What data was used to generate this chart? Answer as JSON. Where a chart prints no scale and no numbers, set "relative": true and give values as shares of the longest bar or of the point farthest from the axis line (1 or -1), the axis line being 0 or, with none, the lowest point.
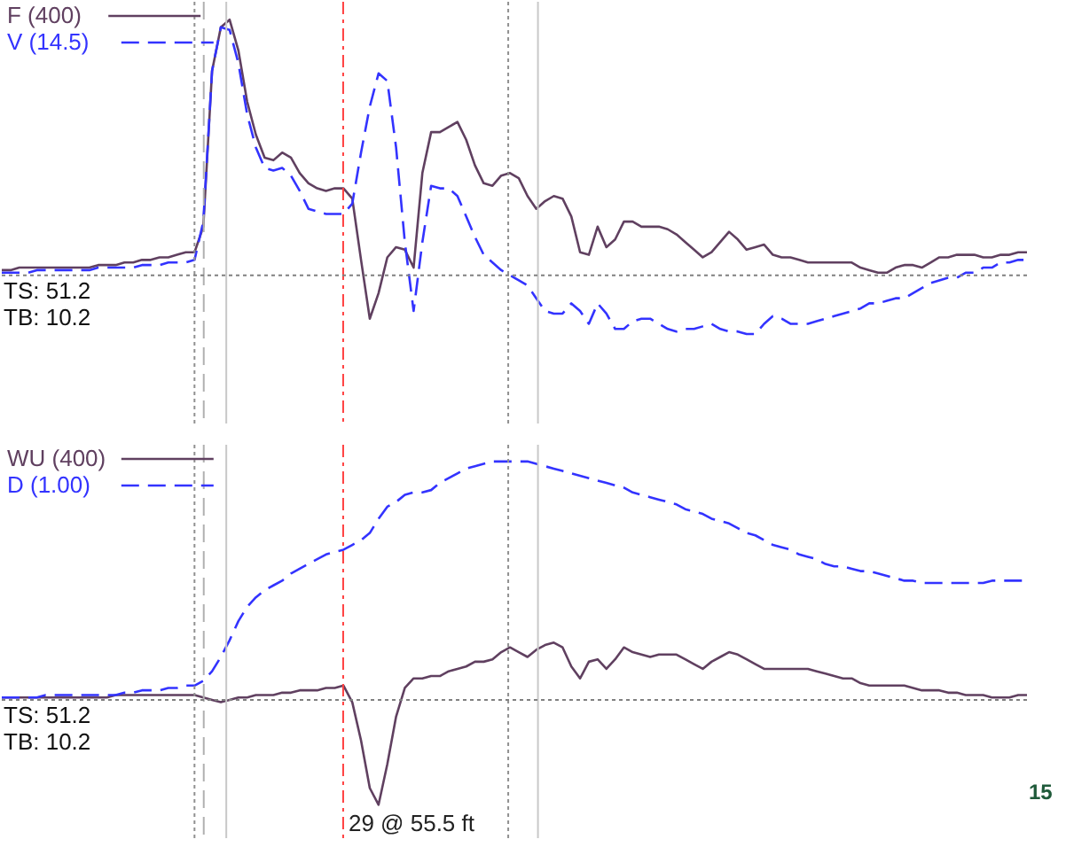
{
  "chart_data": [
    {
      "type": "line",
      "relative": true,
      "legend": "top left",
      "annotations": [
        "TS: 51.2",
        "TB: 10.2"
      ],
      "categories": [
        null,
        null,
        null,
        null,
        null,
        null,
        null,
        null,
        null,
        null,
        null,
        null,
        null,
        null,
        null,
        null,
        null,
        null,
        null,
        null,
        null,
        null,
        null,
        null,
        null,
        null,
        null,
        null,
        null,
        null,
        null,
        null,
        null,
        null,
        null,
        null,
        null,
        null,
        null,
        null,
        null,
        null,
        null,
        null,
        null,
        null,
        null,
        null,
        null,
        null,
        null,
        null,
        null,
        null,
        null,
        null,
        null,
        null,
        null,
        null,
        null,
        null,
        null,
        null,
        null,
        null,
        null,
        null,
        null,
        null,
        null,
        null,
        null,
        null,
        null,
        null,
        null,
        null,
        null,
        null,
        null,
        null,
        null,
        null,
        null,
        null,
        null,
        null,
        null,
        null,
        null,
        null,
        null,
        null,
        null,
        null,
        null,
        null,
        null,
        null,
        null,
        null,
        null,
        null,
        null,
        null,
        null,
        null,
        null,
        null,
        null,
        null,
        null,
        null,
        null,
        null,
        null,
        null
      ],
      "series": [
        {
          "name": "F (400)",
          "color": "#604060",
          "line_style": "solid",
          "values": [
            0.02,
            0.02,
            0.03,
            0.03,
            0.03,
            0.03,
            0.03,
            0.03,
            0.03,
            0.03,
            0.03,
            0.04,
            0.04,
            0.04,
            0.05,
            0.05,
            0.06,
            0.06,
            0.07,
            0.07,
            0.08,
            0.09,
            0.09,
            0.19,
            0.8,
            0.97,
            1,
            0.88,
            0.68,
            0.55,
            0.46,
            0.45,
            0.48,
            0.46,
            0.4,
            0.36,
            0.34,
            0.33,
            0.34,
            0.34,
            0.3,
            0.06,
            -0.17,
            -0.07,
            0.07,
            0.11,
            0.1,
            0.03,
            0.4,
            0.56,
            0.56,
            0.58,
            0.6,
            0.53,
            0.43,
            0.36,
            0.35,
            0.39,
            0.4,
            0.38,
            0.31,
            0.26,
            0.29,
            0.31,
            0.3,
            0.23,
            0.09,
            0.08,
            0.19,
            0.11,
            0.14,
            0.21,
            0.21,
            0.19,
            0.19,
            0.19,
            0.18,
            0.16,
            0.13,
            0.1,
            0.07,
            0.09,
            0.13,
            0.17,
            0.14,
            0.1,
            0.11,
            0.12,
            0.08,
            0.07,
            0.07,
            0.06,
            0.05,
            0.05,
            0.05,
            0.05,
            0.05,
            0.05,
            0.03,
            0.02,
            0.01,
            0.01,
            0.03,
            0.04,
            0.04,
            0.03,
            0.05,
            0.07,
            0.07,
            0.08,
            0.08,
            0.08,
            0.07,
            0.07,
            0.08,
            0.08,
            0.09,
            0.09
          ]
        },
        {
          "name": "V (14.5)",
          "color": "#3333ff",
          "line_style": "dashed",
          "values": [
            0.01,
            0.01,
            0.01,
            0.01,
            0.02,
            0.02,
            0.02,
            0.02,
            0.02,
            0.02,
            0.02,
            0.03,
            0.03,
            0.03,
            0.03,
            0.03,
            0.04,
            0.04,
            0.04,
            0.05,
            0.05,
            0.05,
            0.06,
            0.21,
            0.8,
            0.97,
            0.96,
            0.83,
            0.63,
            0.5,
            0.42,
            0.41,
            0.42,
            0.39,
            0.33,
            0.26,
            0.25,
            0.24,
            0.24,
            0.24,
            0.28,
            0.48,
            0.66,
            0.79,
            0.76,
            0.5,
            0.13,
            -0.14,
            0.13,
            0.35,
            0.34,
            0.34,
            0.31,
            0.23,
            0.15,
            0.08,
            0.05,
            0.02,
            0.0,
            -0.02,
            -0.04,
            -0.09,
            -0.14,
            -0.15,
            -0.15,
            -0.11,
            -0.14,
            -0.19,
            -0.11,
            -0.15,
            -0.21,
            -0.21,
            -0.18,
            -0.17,
            -0.17,
            -0.19,
            -0.21,
            -0.22,
            -0.21,
            -0.21,
            -0.2,
            -0.19,
            -0.21,
            -0.22,
            -0.22,
            -0.23,
            -0.23,
            -0.19,
            -0.16,
            -0.17,
            -0.19,
            -0.19,
            -0.19,
            -0.18,
            -0.17,
            -0.16,
            -0.15,
            -0.14,
            -0.13,
            -0.11,
            -0.11,
            -0.1,
            -0.09,
            -0.09,
            -0.07,
            -0.05,
            -0.03,
            -0.02,
            -0.01,
            -0.01,
            0.01,
            0.01,
            0.03,
            0.03,
            0.05,
            0.05,
            0.06,
            0.06
          ]
        }
      ],
      "ref_lines": [
        {
          "axis": "y",
          "value": 0,
          "color": "#808080",
          "line_style": "dotted"
        }
      ]
    },
    {
      "type": "line",
      "relative": true,
      "legend": "top left",
      "annotations": [
        "TS: 51.2",
        "TB: 10.2",
        "29 @ 55.5 ft",
        "15"
      ],
      "categories": [
        null,
        null,
        null,
        null,
        null,
        null,
        null,
        null,
        null,
        null,
        null,
        null,
        null,
        null,
        null,
        null,
        null,
        null,
        null,
        null,
        null,
        null,
        null,
        null,
        null,
        null,
        null,
        null,
        null,
        null,
        null,
        null,
        null,
        null,
        null,
        null,
        null,
        null,
        null,
        null,
        null,
        null,
        null,
        null,
        null,
        null,
        null,
        null,
        null,
        null,
        null,
        null,
        null,
        null,
        null,
        null,
        null,
        null,
        null,
        null,
        null,
        null,
        null,
        null,
        null,
        null,
        null,
        null,
        null,
        null,
        null,
        null,
        null,
        null,
        null,
        null,
        null,
        null,
        null,
        null,
        null,
        null,
        null,
        null,
        null,
        null,
        null,
        null,
        null,
        null,
        null,
        null,
        null,
        null,
        null,
        null,
        null,
        null,
        null,
        null,
        null,
        null,
        null,
        null,
        null,
        null,
        null,
        null,
        null,
        null,
        null,
        null,
        null,
        null,
        null,
        null,
        null,
        null
      ],
      "series": [
        {
          "name": "WU (400)",
          "color": "#604060",
          "line_style": "solid",
          "values": [
            0.01,
            0.01,
            0.01,
            0.01,
            0.01,
            0.01,
            0.01,
            0.01,
            0.01,
            0.01,
            0.01,
            0.01,
            0.01,
            0.02,
            0.02,
            0.02,
            0.02,
            0.02,
            0.02,
            0.02,
            0.02,
            0.02,
            0.02,
            0.01,
            0.0,
            -0.01,
            0.0,
            0.01,
            0.01,
            0.02,
            0.02,
            0.02,
            0.03,
            0.03,
            0.04,
            0.04,
            0.04,
            0.05,
            0.05,
            0.06,
            -0.01,
            -0.17,
            -0.37,
            -0.44,
            -0.27,
            -0.07,
            0.05,
            0.09,
            0.09,
            0.1,
            0.1,
            0.12,
            0.13,
            0.14,
            0.16,
            0.16,
            0.17,
            0.2,
            0.22,
            0.2,
            0.18,
            0.21,
            0.23,
            0.24,
            0.22,
            0.14,
            0.09,
            0.16,
            0.17,
            0.13,
            0.17,
            0.22,
            0.2,
            0.19,
            0.18,
            0.19,
            0.19,
            0.19,
            0.17,
            0.15,
            0.13,
            0.16,
            0.18,
            0.2,
            0.19,
            0.17,
            0.15,
            0.13,
            0.13,
            0.13,
            0.13,
            0.13,
            0.13,
            0.12,
            0.11,
            0.1,
            0.09,
            0.09,
            0.07,
            0.06,
            0.06,
            0.06,
            0.06,
            0.06,
            0.05,
            0.04,
            0.04,
            0.04,
            0.03,
            0.03,
            0.02,
            0.02,
            0.02,
            0.01,
            0.01,
            0.01,
            0.02,
            0.02
          ]
        },
        {
          "name": "D (1.00)",
          "color": "#3333ff",
          "line_style": "dashed",
          "values": [
            0.01,
            0.01,
            0.01,
            0.01,
            0.01,
            0.02,
            0.02,
            0.02,
            0.02,
            0.02,
            0.02,
            0.02,
            0.02,
            0.02,
            0.03,
            0.03,
            0.04,
            0.04,
            0.04,
            0.05,
            0.05,
            0.06,
            0.06,
            0.08,
            0.12,
            0.18,
            0.25,
            0.33,
            0.39,
            0.43,
            0.46,
            0.48,
            0.5,
            0.53,
            0.55,
            0.57,
            0.59,
            0.61,
            0.62,
            0.63,
            0.65,
            0.67,
            0.7,
            0.76,
            0.81,
            0.83,
            0.86,
            0.87,
            0.87,
            0.88,
            0.91,
            0.93,
            0.95,
            0.97,
            0.98,
            0.99,
            1,
            1,
            1,
            1,
            1,
            0.99,
            0.98,
            0.97,
            0.96,
            0.95,
            0.94,
            0.93,
            0.92,
            0.91,
            0.9,
            0.89,
            0.87,
            0.86,
            0.85,
            0.84,
            0.83,
            0.82,
            0.8,
            0.79,
            0.78,
            0.76,
            0.75,
            0.74,
            0.72,
            0.7,
            0.69,
            0.67,
            0.65,
            0.64,
            0.63,
            0.61,
            0.6,
            0.59,
            0.57,
            0.56,
            0.56,
            0.55,
            0.54,
            0.54,
            0.53,
            0.52,
            0.51,
            0.5,
            0.5,
            0.49,
            0.49,
            0.49,
            0.49,
            0.49,
            0.49,
            0.49,
            0.49,
            0.5,
            0.5,
            0.5,
            0.5,
            0.5
          ]
        }
      ],
      "ref_lines": [
        {
          "axis": "y",
          "value": 0,
          "color": "#808080",
          "line_style": "dotted"
        }
      ]
    }
  ]
}
